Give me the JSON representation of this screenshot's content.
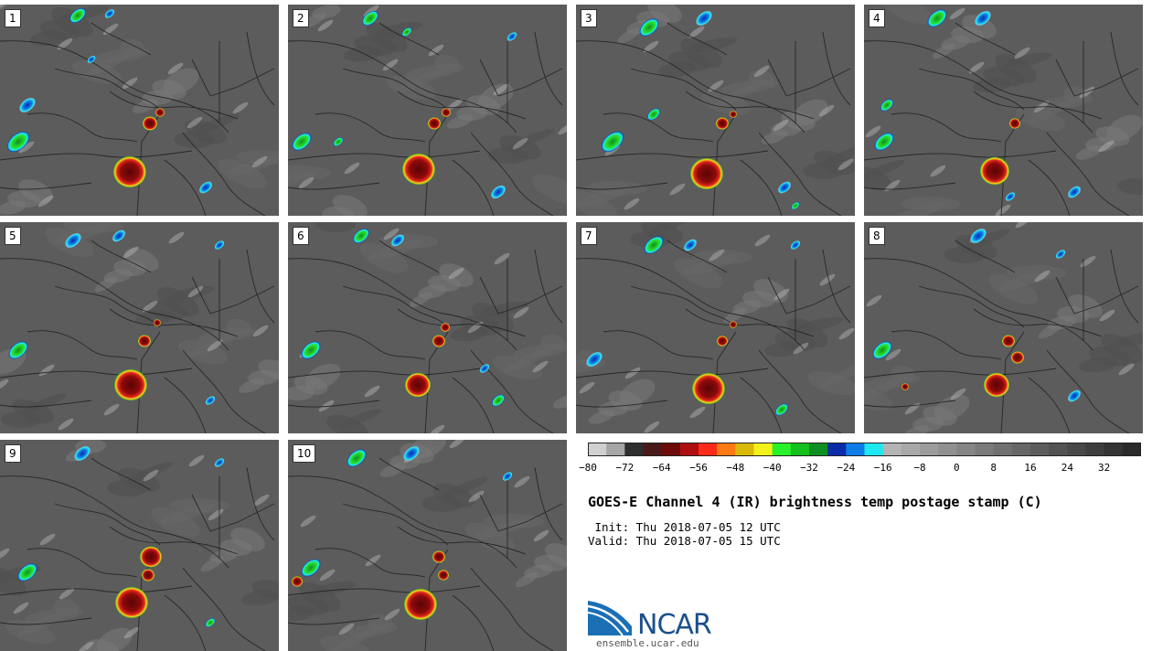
{
  "panels": [
    {
      "number": "1"
    },
    {
      "number": "2"
    },
    {
      "number": "3"
    },
    {
      "number": "4"
    },
    {
      "number": "5"
    },
    {
      "number": "6"
    },
    {
      "number": "7"
    },
    {
      "number": "8"
    },
    {
      "number": "9"
    },
    {
      "number": "10"
    }
  ],
  "colorbar": {
    "colors": [
      "#d0d0d0",
      "#a6a6a6",
      "#2e2e2e",
      "#4a1a1a",
      "#6e0a0a",
      "#b00f0f",
      "#ff2a1a",
      "#ff7a12",
      "#d8b808",
      "#f2f21a",
      "#28f02a",
      "#14c01c",
      "#0f8f22",
      "#0a2ca8",
      "#0d7ce6",
      "#1ee8f0",
      "#b4b4b4",
      "#a8a8a8",
      "#9c9c9c",
      "#909090",
      "#858585",
      "#7a7a7a",
      "#707070",
      "#666666",
      "#5c5c5c",
      "#525252",
      "#484848",
      "#3e3e3e",
      "#343434",
      "#2a2a2a"
    ],
    "ticks": [
      "−80",
      "−72",
      "−64",
      "−56",
      "−48",
      "−40",
      "−32",
      "−24",
      "−16",
      "−8",
      "0",
      "8",
      "16",
      "24",
      "32"
    ]
  },
  "title": "GOES-E Channel 4 (IR) brightness temp postage stamp (C)",
  "init_line": " Init: Thu 2018-07-05 12 UTC",
  "valid_line": "Valid: Thu 2018-07-05 15 UTC",
  "logo_text": "NCAR",
  "website": "ensemble.ucar.edu",
  "icons": {
    "logo": "ncar-logo-icon"
  }
}
